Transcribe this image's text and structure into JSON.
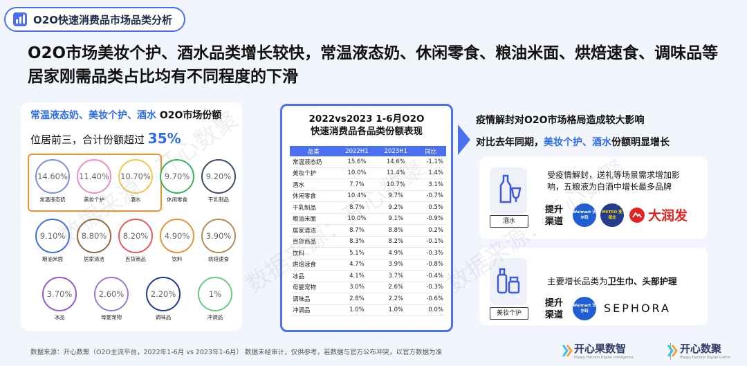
{
  "tag": {
    "label": "O2O快速消费品市场品类分析"
  },
  "headline": "O2O市场美妆个护、酒水品类增长较快，常温液态奶、休闲零食、粮油米面、烘焙速食、调味品等居家刚需品类占比均有不同程度的下滑",
  "left_panel": {
    "line1_highlight": "常温液态奶、美妆个护、酒水",
    "line1_rest": " O2O市场份额",
    "line2_text": "位居前三，合计份额超过 ",
    "line2_big": "35%",
    "bubbles": [
      {
        "value": "14.60%",
        "label": "常温液态奶",
        "color": "#7b8fd6"
      },
      {
        "value": "11.40%",
        "label": "美妆个护",
        "color": "#e58fc2"
      },
      {
        "value": "10.70%",
        "label": "酒水",
        "color": "#f0c64a"
      },
      {
        "value": "9.70%",
        "label": "休闲零食",
        "color": "#3fae5a"
      },
      {
        "value": "9.20%",
        "label": "干乳制品",
        "color": "#3a4a66"
      },
      {
        "value": "9.10%",
        "label": "粮油米面",
        "color": "#3e6fd8"
      },
      {
        "value": "8.80%",
        "label": "居家清洁",
        "color": "#8b6a3e"
      },
      {
        "value": "8.20%",
        "label": "百货商品",
        "color": "#e05a5a"
      },
      {
        "value": "4.90%",
        "label": "饮料",
        "color": "#e8913a"
      },
      {
        "value": "3.90%",
        "label": "烘焙速食",
        "color": "#b48a56"
      },
      {
        "value": "3.70%",
        "label": "冰品",
        "color": "#8e5ac8"
      },
      {
        "value": "2.60%",
        "label": "母婴宠物",
        "color": "#9a78c8"
      },
      {
        "value": "2.20%",
        "label": "调味品",
        "color": "#1f3a8a"
      },
      {
        "value": "1%",
        "label": "冲调品",
        "color": "#6cc68a"
      }
    ]
  },
  "table": {
    "title_line1": "2022vs2023 1-6月O2O",
    "title_line2": "快速消费品各品类份额表现",
    "headers": [
      "品类",
      "2022H1",
      "2023H1",
      "同比"
    ],
    "rows": [
      [
        "常温液态奶",
        "15.6%",
        "14.6%",
        "-1.1%"
      ],
      [
        "美妆个护",
        "10.0%",
        "11.4%",
        "1.4%"
      ],
      [
        "酒水",
        "7.7%",
        "10.7%",
        "3.1%"
      ],
      [
        "休闲零食",
        "10.4%",
        "9.7%",
        "-0.7%"
      ],
      [
        "干乳制品",
        "8.7%",
        "9.2%",
        "0.5%"
      ],
      [
        "粮油米面",
        "10.0%",
        "9.1%",
        "-0.9%"
      ],
      [
        "居家清洁",
        "8.7%",
        "8.8%",
        "0.2%"
      ],
      [
        "百货商品",
        "8.3%",
        "8.2%",
        "-0.1%"
      ],
      [
        "饮料",
        "5.1%",
        "4.9%",
        "-0.3%"
      ],
      [
        "烘焙速食",
        "4.7%",
        "3.9%",
        "-0.8%"
      ],
      [
        "冰品",
        "4.1%",
        "3.7%",
        "-0.4%"
      ],
      [
        "母婴宠物",
        "3.0%",
        "2.6%",
        "-0.3%"
      ],
      [
        "调味品",
        "2.8%",
        "2.2%",
        "-0.6%"
      ],
      [
        "冲调品",
        "1.0%",
        "1.0%",
        "0.0%"
      ]
    ]
  },
  "right": {
    "title1": "疫情解封对O2O市场格局造成较大影响",
    "title2_pre": "对比去年同期，",
    "title2_hl": "美妆个护、酒水",
    "title2_post": "份额明显增长",
    "card1": {
      "label": "酒水",
      "desc_line1": "受疫情解封，送礼等场景需求增加影",
      "desc_line2": "响，五粮液为白酒中增长最多品牌",
      "promote1": "提升",
      "promote2": "渠道",
      "walmart": "Walmart 沃尔玛",
      "metro": "METRO 麦德龙",
      "rt": "大润发"
    },
    "card2": {
      "label": "美妆个护",
      "desc_pre": "主要增长品类为",
      "desc_bold": "卫生巾、头部护理",
      "promote1": "提升",
      "promote2": "渠道",
      "walmart": "Walmart 沃尔玛",
      "sephora": "SEPHORA"
    }
  },
  "footer": "数据来源：开心数聚（O2O主流平台，2022年1-6月 vs 2023年1-6月） 数据未经审计，仅供参考，若数据与官方公布冲突，以官方数据为准",
  "brands": {
    "b1": "开心果数智",
    "b1_sub": "Happy Harvest Digital Intelligence",
    "b2": "开心数聚",
    "b2_sub": "Happy Harvest Digital Gather"
  },
  "watermark": "数据来源：开心数聚",
  "colors": {
    "accent": "#2f6de8",
    "border": "#4a6ff0",
    "highlight_box": "#e8913a",
    "rt_red": "#e02424"
  }
}
